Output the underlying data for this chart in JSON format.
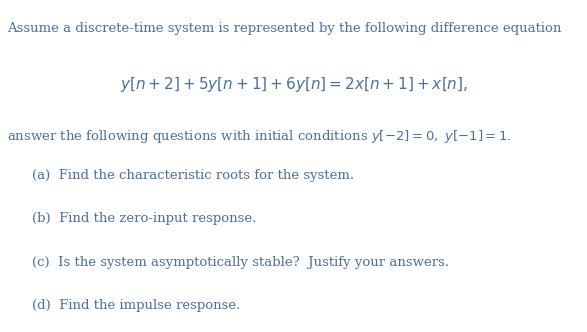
{
  "background_color": "#ffffff",
  "text_color": "#4a6fa5",
  "fig_width": 5.87,
  "fig_height": 3.32,
  "dpi": 100,
  "line1": "Assume a discrete-time system is represented by the following difference equation",
  "equation": "$y[n+2]+5y[n+1]+6y[n]=2x[n+1]+x[n],$",
  "line2": "answer the following questions with initial conditions $y[-2]=0,\\ y[-1]=1.$",
  "item_a": "(a)  Find the characteristic roots for the system.",
  "item_b": "(b)  Find the zero-input response.",
  "item_c": "(c)  Is the system asymptotically stable?  Justify your answers.",
  "item_d": "(d)  Find the impulse response.",
  "fontsize_main": 9.5,
  "fontsize_eq": 11.0,
  "text_color_inline": "#4a6fa5"
}
